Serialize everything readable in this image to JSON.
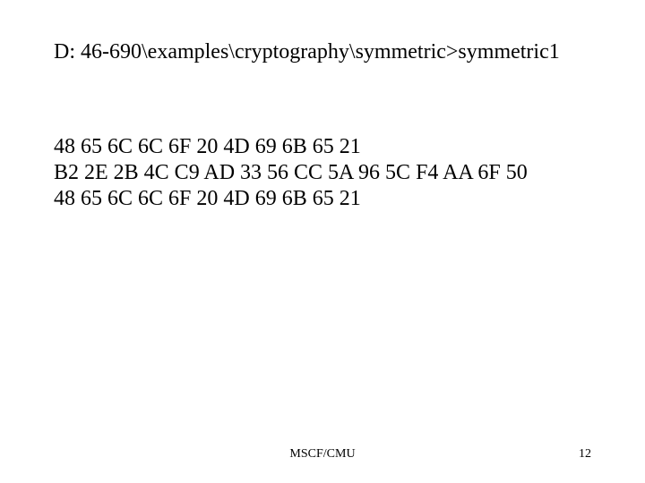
{
  "slide": {
    "title": "D: 46-690\\examples\\cryptography\\symmetric>symmetric1",
    "lines": [
      "48 65 6C 6C 6F 20 4D 69 6B 65 21",
      "B2 2E 2B 4C C9 AD 33 56 CC 5A 96 5C F4 AA 6F 50",
      "48 65 6C 6C 6F 20 4D 69 6B 65 21"
    ],
    "footer_center": "MSCF/CMU",
    "page_number": "12"
  },
  "style": {
    "background_color": "#ffffff",
    "text_color": "#000000",
    "title_fontsize": 24,
    "body_fontsize": 24,
    "footer_fontsize": 14,
    "font_family": "Times New Roman"
  }
}
